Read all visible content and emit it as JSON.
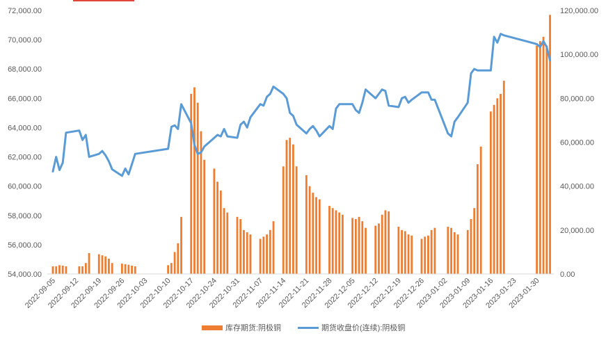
{
  "chart_data": {
    "type": "bar+line",
    "title": "",
    "legend_position": "bottom",
    "grid": false,
    "x_tick_labels": [
      "2022-09-05",
      "2022-09-12",
      "2022-09-19",
      "2022-09-26",
      "2022-10-03",
      "2022-10-10",
      "2022-10-17",
      "2022-10-24",
      "2022-10-31",
      "2022-11-07",
      "2022-11-14",
      "2022-11-21",
      "2022-11-28",
      "2022-12-05",
      "2022-12-12",
      "2022-12-19",
      "2022-12-26",
      "2023-01-02",
      "2023-01-09",
      "2023-01-16",
      "2023-01-23",
      "2023-01-30"
    ],
    "y_left": {
      "min": 54000,
      "max": 72000,
      "step": 2000,
      "tick_labels": [
        "54,000.00",
        "56,000.00",
        "58,000.00",
        "60,000.00",
        "62,000.00",
        "64,000.00",
        "66,000.00",
        "68,000.00",
        "70,000.00",
        "72,000.00"
      ]
    },
    "y_right": {
      "min": 0,
      "max": 120000,
      "step": 20000,
      "tick_labels": [
        "0.00",
        "20,000.00",
        "40,000.00",
        "60,000.00",
        "80,000.00",
        "100,000.00",
        "120,000.00"
      ]
    },
    "series": [
      {
        "name": "库存期货:阴极铜",
        "kind": "bar",
        "axis": "right",
        "color": "#ED7D31",
        "dates": [
          "2022-09-05",
          "2022-09-06",
          "2022-09-07",
          "2022-09-08",
          "2022-09-09",
          "2022-09-13",
          "2022-09-14",
          "2022-09-15",
          "2022-09-16",
          "2022-09-19",
          "2022-09-20",
          "2022-09-21",
          "2022-09-22",
          "2022-09-23",
          "2022-09-26",
          "2022-09-27",
          "2022-09-28",
          "2022-09-29",
          "2022-09-30",
          "2022-10-10",
          "2022-10-11",
          "2022-10-12",
          "2022-10-13",
          "2022-10-14",
          "2022-10-17",
          "2022-10-18",
          "2022-10-19",
          "2022-10-20",
          "2022-10-21",
          "2022-10-24",
          "2022-10-25",
          "2022-10-26",
          "2022-10-27",
          "2022-10-28",
          "2022-10-31",
          "2022-11-01",
          "2022-11-02",
          "2022-11-03",
          "2022-11-04",
          "2022-11-07",
          "2022-11-08",
          "2022-11-09",
          "2022-11-10",
          "2022-11-11",
          "2022-11-14",
          "2022-11-15",
          "2022-11-16",
          "2022-11-17",
          "2022-11-18",
          "2022-11-21",
          "2022-11-22",
          "2022-11-23",
          "2022-11-24",
          "2022-11-25",
          "2022-11-28",
          "2022-11-29",
          "2022-11-30",
          "2022-12-01",
          "2022-12-02",
          "2022-12-05",
          "2022-12-06",
          "2022-12-07",
          "2022-12-08",
          "2022-12-09",
          "2022-12-12",
          "2022-12-13",
          "2022-12-14",
          "2022-12-15",
          "2022-12-16",
          "2022-12-19",
          "2022-12-20",
          "2022-12-21",
          "2022-12-22",
          "2022-12-23",
          "2022-12-26",
          "2022-12-27",
          "2022-12-28",
          "2022-12-29",
          "2022-12-30",
          "2023-01-03",
          "2023-01-04",
          "2023-01-05",
          "2023-01-06",
          "2023-01-09",
          "2023-01-10",
          "2023-01-11",
          "2023-01-12",
          "2023-01-13",
          "2023-01-16",
          "2023-01-17",
          "2023-01-18",
          "2023-01-19",
          "2023-01-20",
          "2023-01-30",
          "2023-01-31",
          "2023-02-01",
          "2023-02-02",
          "2023-02-03"
        ],
        "values": [
          3500,
          3500,
          4000,
          3800,
          3500,
          3500,
          3500,
          5000,
          9500,
          9000,
          8500,
          8000,
          7000,
          5000,
          4700,
          4500,
          4200,
          3800,
          3500,
          4000,
          5000,
          10000,
          14000,
          26000,
          82000,
          85000,
          78000,
          65000,
          52000,
          48000,
          42000,
          38000,
          30000,
          28000,
          26000,
          25000,
          20000,
          19000,
          18000,
          16000,
          17000,
          18000,
          20000,
          24000,
          49000,
          61000,
          62000,
          59000,
          49000,
          45000,
          40000,
          37000,
          35000,
          34000,
          31000,
          30000,
          29000,
          28000,
          27000,
          25500,
          25000,
          26000,
          24000,
          21000,
          22000,
          23000,
          27000,
          29000,
          28500,
          21500,
          20000,
          19500,
          18000,
          17500,
          16000,
          17000,
          17500,
          20000,
          21000,
          21500,
          21000,
          19000,
          18000,
          20000,
          25000,
          30000,
          50000,
          58000,
          74000,
          77000,
          80000,
          82000,
          88000,
          104000,
          106000,
          108000,
          104000,
          118000
        ]
      },
      {
        "name": "期货收盘价(连续):阴极铜",
        "kind": "line",
        "axis": "left",
        "color": "#5B9BD5",
        "dates": [
          "2022-09-05",
          "2022-09-06",
          "2022-09-07",
          "2022-09-08",
          "2022-09-09",
          "2022-09-13",
          "2022-09-14",
          "2022-09-15",
          "2022-09-16",
          "2022-09-19",
          "2022-09-20",
          "2022-09-21",
          "2022-09-22",
          "2022-09-23",
          "2022-09-26",
          "2022-09-27",
          "2022-09-28",
          "2022-09-29",
          "2022-09-30",
          "2022-10-10",
          "2022-10-11",
          "2022-10-12",
          "2022-10-13",
          "2022-10-14",
          "2022-10-17",
          "2022-10-18",
          "2022-10-19",
          "2022-10-20",
          "2022-10-21",
          "2022-10-24",
          "2022-10-25",
          "2022-10-26",
          "2022-10-27",
          "2022-10-28",
          "2022-10-31",
          "2022-11-01",
          "2022-11-02",
          "2022-11-03",
          "2022-11-04",
          "2022-11-07",
          "2022-11-08",
          "2022-11-09",
          "2022-11-10",
          "2022-11-11",
          "2022-11-14",
          "2022-11-15",
          "2022-11-16",
          "2022-11-17",
          "2022-11-18",
          "2022-11-21",
          "2022-11-22",
          "2022-11-23",
          "2022-11-24",
          "2022-11-25",
          "2022-11-28",
          "2022-11-29",
          "2022-11-30",
          "2022-12-01",
          "2022-12-02",
          "2022-12-05",
          "2022-12-06",
          "2022-12-07",
          "2022-12-08",
          "2022-12-09",
          "2022-12-12",
          "2022-12-13",
          "2022-12-14",
          "2022-12-15",
          "2022-12-16",
          "2022-12-19",
          "2022-12-20",
          "2022-12-21",
          "2022-12-22",
          "2022-12-23",
          "2022-12-26",
          "2022-12-27",
          "2022-12-28",
          "2022-12-29",
          "2022-12-30",
          "2023-01-03",
          "2023-01-04",
          "2023-01-05",
          "2023-01-06",
          "2023-01-09",
          "2023-01-10",
          "2023-01-11",
          "2023-01-12",
          "2023-01-13",
          "2023-01-16",
          "2023-01-17",
          "2023-01-18",
          "2023-01-19",
          "2023-01-20",
          "2023-01-30",
          "2023-01-31",
          "2023-02-01",
          "2023-02-02",
          "2023-02-03"
        ],
        "values": [
          61000,
          62000,
          61100,
          61600,
          63650,
          63800,
          63150,
          63500,
          62000,
          62200,
          62400,
          62100,
          61700,
          61150,
          60700,
          61200,
          60800,
          61500,
          62200,
          62550,
          64050,
          64150,
          63900,
          65600,
          64300,
          62800,
          62200,
          62300,
          62700,
          63300,
          63500,
          63400,
          63900,
          63400,
          63300,
          64200,
          64400,
          64000,
          64700,
          65600,
          65500,
          66100,
          66300,
          66800,
          66300,
          66000,
          65000,
          64800,
          64200,
          63600,
          63900,
          64100,
          63800,
          63400,
          64100,
          63900,
          65300,
          65600,
          65600,
          65600,
          65200,
          65000,
          65700,
          66600,
          66000,
          66300,
          66600,
          66500,
          65500,
          65400,
          66000,
          66100,
          65700,
          65900,
          66400,
          66400,
          66400,
          65900,
          65900,
          63600,
          63400,
          64400,
          64700,
          65700,
          67700,
          68000,
          67900,
          67900,
          67900,
          70200,
          69800,
          70400,
          70300,
          69700,
          69500,
          69900,
          69500,
          68600
        ]
      }
    ]
  }
}
